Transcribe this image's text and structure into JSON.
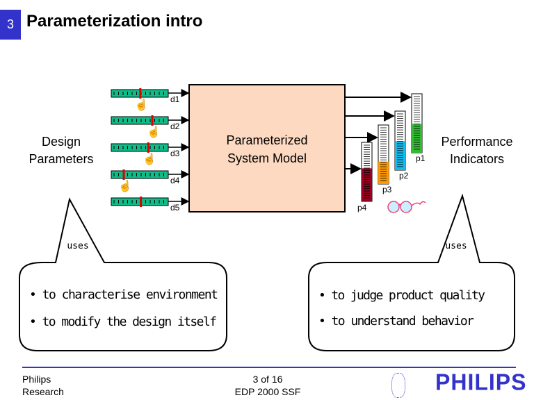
{
  "slide": {
    "number": "3",
    "title": "Parameterization intro"
  },
  "diagram": {
    "left_label": [
      "Design",
      "Parameters"
    ],
    "right_label": [
      "Performance",
      "Indicators"
    ],
    "model_label": [
      "Parameterized",
      "System Model"
    ],
    "design_params": [
      {
        "name": "d1",
        "value": 0.51
      },
      {
        "name": "d2",
        "value": 0.72
      },
      {
        "name": "d3",
        "value": 0.65
      },
      {
        "name": "d4",
        "value": 0.22
      },
      {
        "name": "d5",
        "value": 0.52
      }
    ],
    "indicators": [
      {
        "name": "p1",
        "level": 0.49,
        "color": "#33bb33"
      },
      {
        "name": "p2",
        "level": 0.49,
        "color": "#11bbee"
      },
      {
        "name": "p3",
        "level": 0.38,
        "color": "#ff9900"
      },
      {
        "name": "p4",
        "level": 0.56,
        "color": "#990022"
      }
    ],
    "left_bubble": {
      "tail": "uses",
      "items": [
        "• to characterise environment",
        "• to modify the design itself"
      ]
    },
    "right_bubble": {
      "tail": "uses",
      "items": [
        "• to judge product quality",
        "• to understand behavior"
      ]
    }
  },
  "footer": {
    "org": [
      "Philips",
      "Research"
    ],
    "page": "3 of 16",
    "event": "EDP 2000 SSF",
    "logo": "PHILIPS"
  },
  "colors": {
    "accent": "#3333cc",
    "slider": "#11bb88",
    "model_box": "#fcd9c0"
  }
}
